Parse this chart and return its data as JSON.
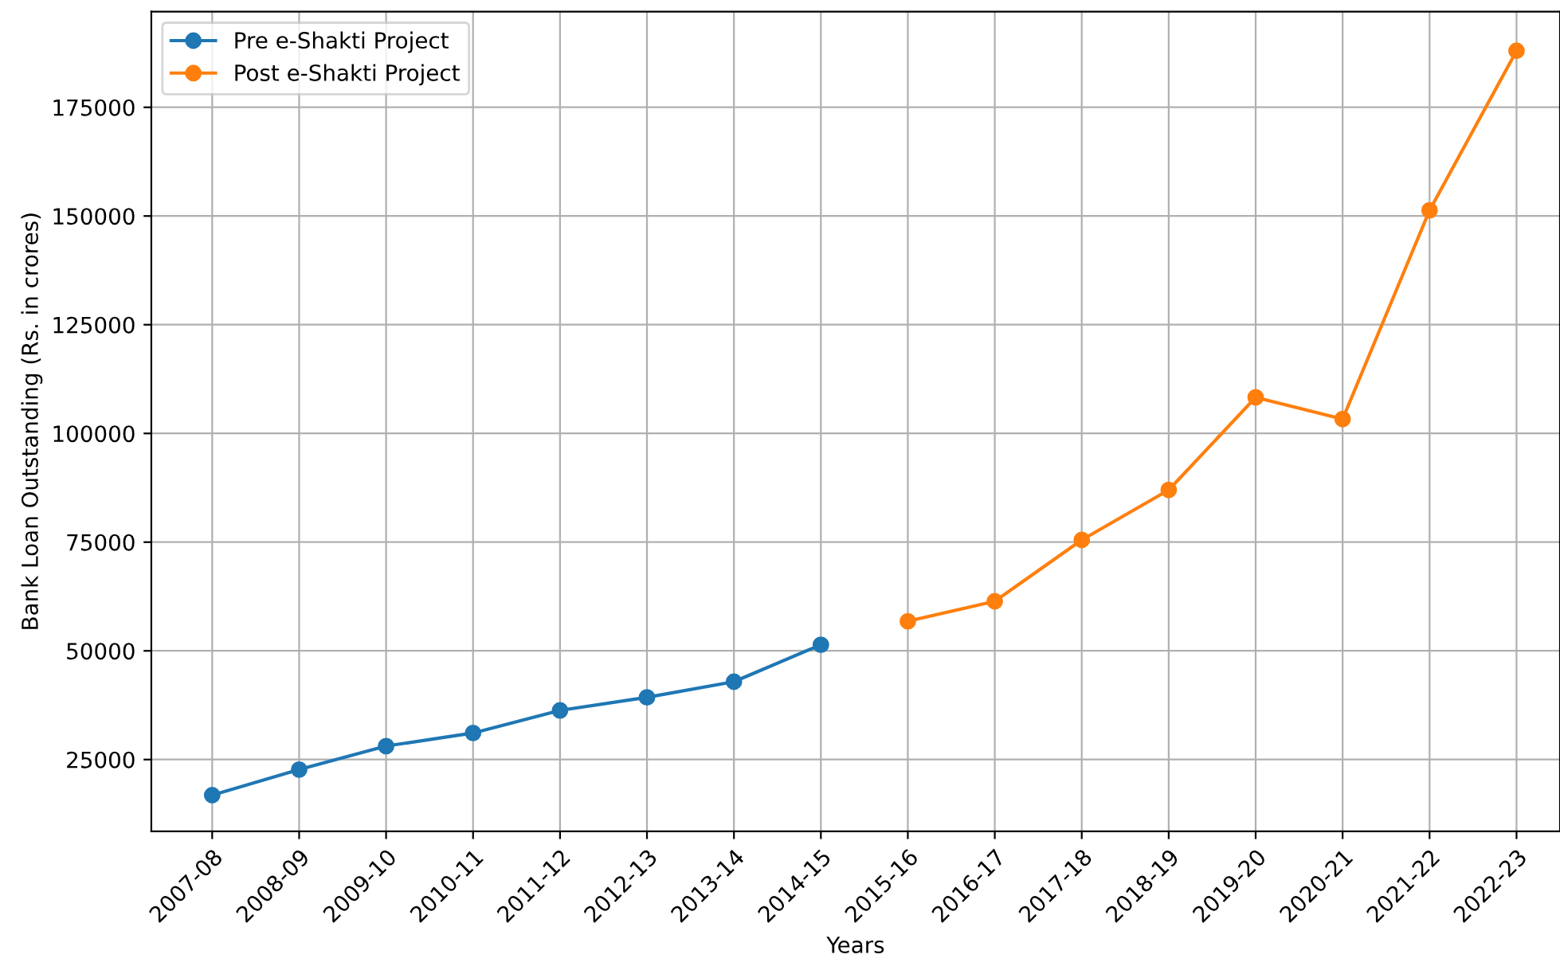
{
  "chart_data": {
    "type": "line",
    "xlabel": "Years",
    "ylabel": "Bank Loan Outstanding (Rs. in crores)",
    "categories": [
      "2007-08",
      "2008-09",
      "2009-10",
      "2010-11",
      "2011-12",
      "2012-13",
      "2013-14",
      "2014-15",
      "2015-16",
      "2016-17",
      "2017-18",
      "2018-19",
      "2019-20",
      "2020-21",
      "2021-22",
      "2022-23"
    ],
    "series": [
      {
        "name": "Pre e-Shakti Project",
        "color": "#1f77b4",
        "values": [
          16800,
          22700,
          28100,
          31100,
          36300,
          39300,
          42900,
          51400,
          null,
          null,
          null,
          null,
          null,
          null,
          null,
          null
        ]
      },
      {
        "name": "Post e-Shakti Project",
        "color": "#ff7f0e",
        "values": [
          null,
          null,
          null,
          null,
          null,
          null,
          null,
          null,
          56800,
          61400,
          75500,
          87000,
          108300,
          103300,
          151300,
          188000
        ]
      }
    ],
    "ylim": [
      8500,
      197000
    ],
    "yticks": [
      25000,
      50000,
      75000,
      100000,
      125000,
      150000,
      175000
    ],
    "grid": true,
    "legend": "top left",
    "marker": "circle",
    "line_style": "solid"
  }
}
